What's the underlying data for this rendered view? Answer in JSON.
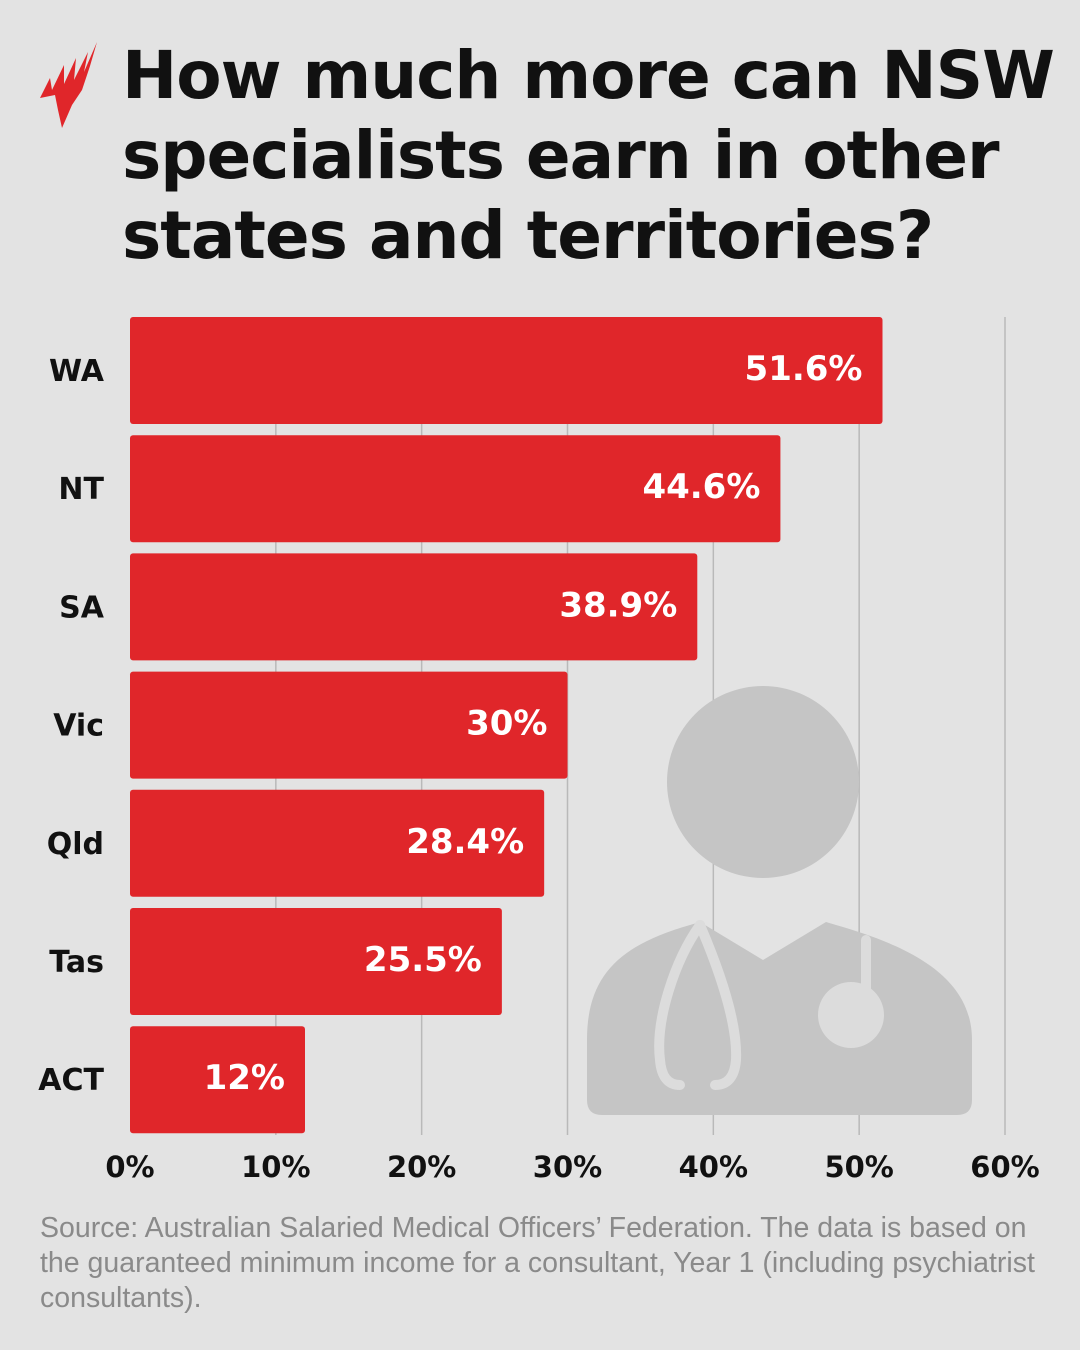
{
  "title": "How much more can NSW specialists earn in other states and territories?",
  "logo": {
    "name": "SBS logo",
    "color": "#e0262a"
  },
  "chart_data": {
    "type": "bar",
    "orientation": "horizontal",
    "categories": [
      "WA",
      "NT",
      "SA",
      "Vic",
      "Qld",
      "Tas",
      "ACT"
    ],
    "values": [
      51.6,
      44.6,
      38.9,
      30,
      28.4,
      25.5,
      12
    ],
    "data_labels": [
      "51.6%",
      "44.6%",
      "38.9%",
      "30%",
      "28.4%",
      "25.5%",
      "12%"
    ],
    "xlim": [
      0,
      60
    ],
    "x_ticks": [
      "0%",
      "10%",
      "20%",
      "30%",
      "40%",
      "50%",
      "60%"
    ],
    "grid": "vertical",
    "bar_color": "#e0262a",
    "background_illustration": "doctor-with-stethoscope-icon"
  },
  "source": "Source: Australian Salaried Medical Officers’ Federation. The data is based on the guaranteed minimum income for a consultant, Year 1 (including psychiatrist consultants)."
}
